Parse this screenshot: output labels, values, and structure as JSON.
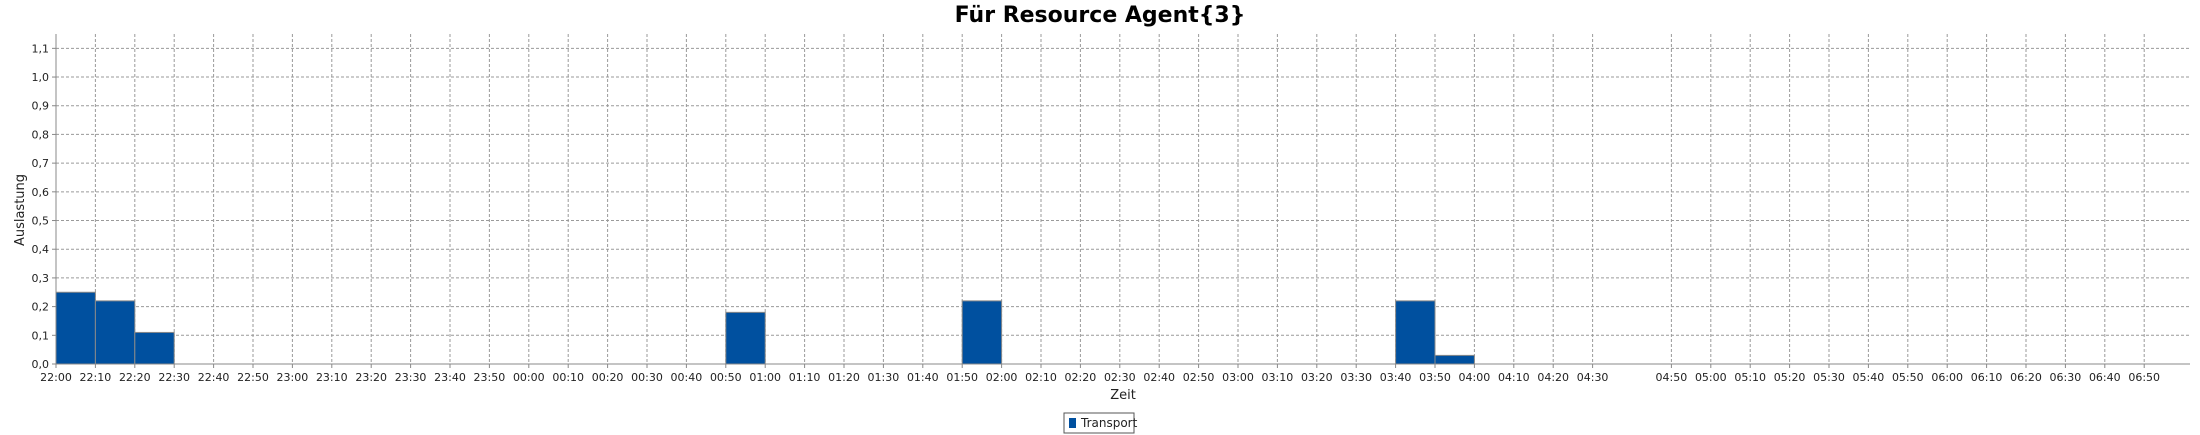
{
  "chart_data": {
    "type": "bar",
    "title": "Für Resource Agent{3}",
    "xlabel": "Zeit",
    "ylabel": "Auslastung",
    "ylim": [
      0,
      1.15
    ],
    "y_ticks": [
      "0,0",
      "0,1",
      "0,2",
      "0,3",
      "0,4",
      "0,5",
      "0,6",
      "0,7",
      "0,8",
      "0,9",
      "1,0",
      "1,1"
    ],
    "x_ticks": [
      "22:00",
      "22:10",
      "22:20",
      "22:30",
      "22:40",
      "22:50",
      "23:00",
      "23:10",
      "23:20",
      "23:30",
      "23:40",
      "23:50",
      "00:00",
      "00:10",
      "00:20",
      "00:30",
      "00:40",
      "00:50",
      "01:00",
      "01:10",
      "01:20",
      "01:30",
      "01:40",
      "01:50",
      "02:00",
      "02:10",
      "02:20",
      "02:30",
      "02:40",
      "02:50",
      "03:00",
      "03:10",
      "03:20",
      "03:30",
      "03:40",
      "03:50",
      "04:00",
      "04:10",
      "04:20",
      "04:30",
      "04:50",
      "05:00",
      "05:10",
      "05:20",
      "05:30",
      "05:40",
      "05:50",
      "06:00",
      "06:10",
      "06:20",
      "06:30",
      "06:40",
      "06:50"
    ],
    "grid": true,
    "legend_position": "bottom-center",
    "series": [
      {
        "name": "Transport",
        "color": "#00509f",
        "points": [
          {
            "start": "22:00",
            "end": "22:10",
            "value": 0.25
          },
          {
            "start": "22:10",
            "end": "22:20",
            "value": 0.22
          },
          {
            "start": "22:20",
            "end": "22:30",
            "value": 0.11
          },
          {
            "start": "00:50",
            "end": "01:00",
            "value": 0.18
          },
          {
            "start": "01:50",
            "end": "02:00",
            "value": 0.22
          },
          {
            "start": "03:40",
            "end": "03:50",
            "value": 0.22
          },
          {
            "start": "03:50",
            "end": "04:00",
            "value": 0.03
          }
        ]
      }
    ]
  }
}
